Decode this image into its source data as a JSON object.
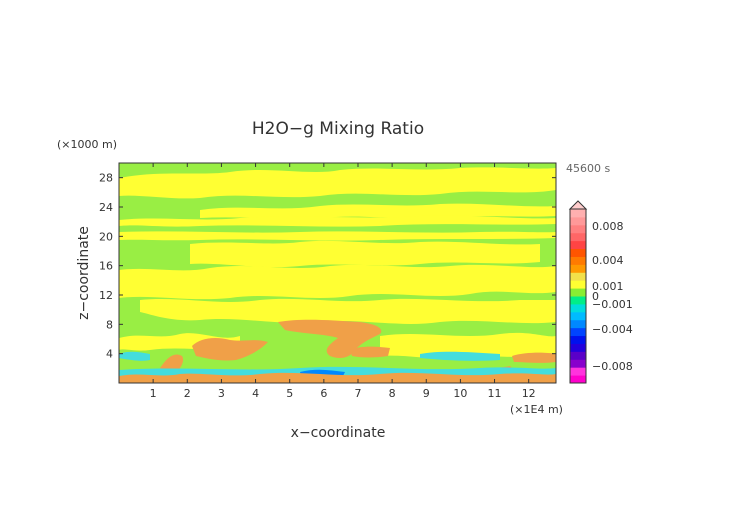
{
  "chart_data": {
    "type": "heatmap",
    "title": "H2O−g Mixing Ratio",
    "xlabel": "x−coordinate",
    "ylabel": "z−coordinate",
    "x_unit": "(×1E4 m)",
    "y_unit": "(×1000 m)",
    "time_label": "45600 s",
    "xlim": [
      0,
      12.8
    ],
    "ylim": [
      0,
      30
    ],
    "xticks": [
      "1",
      "2",
      "3",
      "4",
      "5",
      "6",
      "7",
      "8",
      "9",
      "10",
      "11",
      "12"
    ],
    "yticks": [
      "4",
      "8",
      "12",
      "16",
      "20",
      "24",
      "28"
    ],
    "colorbar": {
      "labels": [
        "0.008",
        "0.004",
        "0.001",
        "0",
        "−0.001",
        "−0.004",
        "−0.008"
      ],
      "label_values": [
        0.008,
        0.004,
        0.001,
        0,
        -0.001,
        -0.004,
        -0.008
      ],
      "colors": [
        "#ff00cc",
        "#ff33dd",
        "#8800cc",
        "#5a00c8",
        "#2200dd",
        "#0011ee",
        "#0044ff",
        "#0088ff",
        "#00bbff",
        "#00dddd",
        "#00ee88",
        "#88ee33",
        "#ffff33",
        "#f2e04a",
        "#ff9900",
        "#ff7a00",
        "#ff5500",
        "#ff4444",
        "#ff6666",
        "#ff8080",
        "#ff9999",
        "#ffb0b0"
      ]
    },
    "colors": {
      "background": "#99ee44",
      "positive_small": "#ffff33",
      "positive_mid": "#f0a048",
      "negative_small": "#44dddd"
    }
  }
}
